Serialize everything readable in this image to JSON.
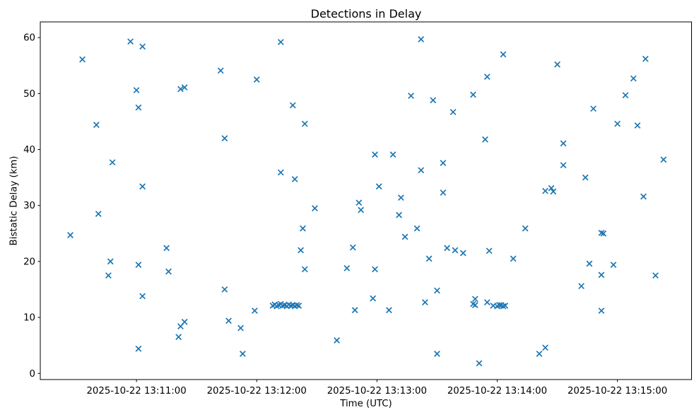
{
  "chart_data": {
    "type": "scatter",
    "title": "Detections in Delay",
    "xlabel": "Time (UTC)",
    "ylabel": "Bistatic Delay (km)",
    "marker": "x",
    "marker_color": "#1f77b4",
    "grid": false,
    "legend": "none",
    "ylim": [
      -1.1,
      62.8
    ],
    "xlim": [
      "13:10:12",
      "13:15:37"
    ],
    "y_ticks": [
      0,
      10,
      20,
      30,
      40,
      50,
      60
    ],
    "x_ticks": [
      {
        "label": "2025-10-22 13:11:00",
        "time": "13:11:00"
      },
      {
        "label": "2025-10-22 13:12:00",
        "time": "13:12:00"
      },
      {
        "label": "2025-10-22 13:13:00",
        "time": "13:13:00"
      },
      {
        "label": "2025-10-22 13:14:00",
        "time": "13:14:00"
      },
      {
        "label": "2025-10-22 13:15:00",
        "time": "13:15:00"
      }
    ],
    "points": [
      {
        "t": "13:10:57",
        "v": 59.3
      },
      {
        "t": "13:11:03",
        "v": 58.4
      },
      {
        "t": "13:10:33",
        "v": 56.1
      },
      {
        "t": "13:11:00",
        "v": 50.6
      },
      {
        "t": "13:11:22",
        "v": 50.8
      },
      {
        "t": "13:11:24",
        "v": 51.1
      },
      {
        "t": "13:11:01",
        "v": 47.5
      },
      {
        "t": "13:10:40",
        "v": 44.4
      },
      {
        "t": "13:10:48",
        "v": 37.7
      },
      {
        "t": "13:11:03",
        "v": 33.4
      },
      {
        "t": "13:10:41",
        "v": 28.5
      },
      {
        "t": "13:10:27",
        "v": 24.7
      },
      {
        "t": "13:11:15",
        "v": 22.4
      },
      {
        "t": "13:10:47",
        "v": 20.0
      },
      {
        "t": "13:11:01",
        "v": 19.4
      },
      {
        "t": "13:11:16",
        "v": 18.2
      },
      {
        "t": "13:10:46",
        "v": 17.5
      },
      {
        "t": "13:11:03",
        "v": 13.8
      },
      {
        "t": "13:11:24",
        "v": 9.2
      },
      {
        "t": "13:11:22",
        "v": 8.4
      },
      {
        "t": "13:11:21",
        "v": 6.5
      },
      {
        "t": "13:11:01",
        "v": 4.4
      },
      {
        "t": "13:12:12",
        "v": 59.2
      },
      {
        "t": "13:11:42",
        "v": 54.1
      },
      {
        "t": "13:12:00",
        "v": 52.5
      },
      {
        "t": "13:12:18",
        "v": 47.9
      },
      {
        "t": "13:12:24",
        "v": 44.6
      },
      {
        "t": "13:11:44",
        "v": 42.0
      },
      {
        "t": "13:12:12",
        "v": 35.9
      },
      {
        "t": "13:12:19",
        "v": 34.7
      },
      {
        "t": "13:12:29",
        "v": 29.5
      },
      {
        "t": "13:12:51",
        "v": 30.5
      },
      {
        "t": "13:12:52",
        "v": 29.2
      },
      {
        "t": "13:12:23",
        "v": 25.9
      },
      {
        "t": "13:12:22",
        "v": 22.0
      },
      {
        "t": "13:12:48",
        "v": 22.5
      },
      {
        "t": "13:12:24",
        "v": 18.6
      },
      {
        "t": "13:12:45",
        "v": 18.8
      },
      {
        "t": "13:11:44",
        "v": 15.0
      },
      {
        "t": "13:11:59",
        "v": 11.2
      },
      {
        "t": "13:11:46",
        "v": 9.4
      },
      {
        "t": "13:11:52",
        "v": 8.1
      },
      {
        "t": "13:12:40",
        "v": 5.9
      },
      {
        "t": "13:11:53",
        "v": 3.5
      },
      {
        "t": "13:12:49",
        "v": 11.3
      },
      {
        "t": "13:12:08",
        "v": 12.1
      },
      {
        "t": "13:12:09",
        "v": 12.3
      },
      {
        "t": "13:12:10",
        "v": 12.0
      },
      {
        "t": "13:12:11",
        "v": 12.2
      },
      {
        "t": "13:12:12",
        "v": 12.4
      },
      {
        "t": "13:12:13",
        "v": 12.1
      },
      {
        "t": "13:12:14",
        "v": 12.2
      },
      {
        "t": "13:12:15",
        "v": 12.0
      },
      {
        "t": "13:12:16",
        "v": 12.3
      },
      {
        "t": "13:12:17",
        "v": 12.1
      },
      {
        "t": "13:12:18",
        "v": 12.2
      },
      {
        "t": "13:12:19",
        "v": 12.0
      },
      {
        "t": "13:12:20",
        "v": 12.2
      },
      {
        "t": "13:12:21",
        "v": 12.1
      },
      {
        "t": "13:13:22",
        "v": 59.7
      },
      {
        "t": "13:14:03",
        "v": 57.0
      },
      {
        "t": "13:13:55",
        "v": 53.0
      },
      {
        "t": "13:13:17",
        "v": 49.6
      },
      {
        "t": "13:13:28",
        "v": 48.8
      },
      {
        "t": "13:13:48",
        "v": 49.8
      },
      {
        "t": "13:13:38",
        "v": 46.7
      },
      {
        "t": "13:13:54",
        "v": 41.8
      },
      {
        "t": "13:12:59",
        "v": 39.1
      },
      {
        "t": "13:13:08",
        "v": 39.1
      },
      {
        "t": "13:13:33",
        "v": 37.6
      },
      {
        "t": "13:13:22",
        "v": 36.3
      },
      {
        "t": "13:13:01",
        "v": 33.4
      },
      {
        "t": "13:13:33",
        "v": 32.3
      },
      {
        "t": "13:13:12",
        "v": 31.4
      },
      {
        "t": "13:13:11",
        "v": 28.3
      },
      {
        "t": "13:13:20",
        "v": 25.9
      },
      {
        "t": "13:13:14",
        "v": 24.4
      },
      {
        "t": "13:13:35",
        "v": 22.4
      },
      {
        "t": "13:13:39",
        "v": 22.0
      },
      {
        "t": "13:13:43",
        "v": 21.5
      },
      {
        "t": "13:13:56",
        "v": 21.9
      },
      {
        "t": "13:13:26",
        "v": 20.5
      },
      {
        "t": "13:14:08",
        "v": 20.5
      },
      {
        "t": "13:12:59",
        "v": 18.6
      },
      {
        "t": "13:13:30",
        "v": 14.8
      },
      {
        "t": "13:12:58",
        "v": 13.4
      },
      {
        "t": "13:13:24",
        "v": 12.7
      },
      {
        "t": "13:13:06",
        "v": 11.3
      },
      {
        "t": "13:14:14",
        "v": 25.9
      },
      {
        "t": "13:13:30",
        "v": 3.5
      },
      {
        "t": "13:13:51",
        "v": 1.8
      },
      {
        "t": "13:13:49",
        "v": 13.3
      },
      {
        "t": "13:13:48",
        "v": 12.4
      },
      {
        "t": "13:13:49",
        "v": 12.2
      },
      {
        "t": "13:13:55",
        "v": 12.7
      },
      {
        "t": "13:13:58",
        "v": 12.1
      },
      {
        "t": "13:14:00",
        "v": 12.0
      },
      {
        "t": "13:14:01",
        "v": 12.2
      },
      {
        "t": "13:14:02",
        "v": 12.2
      },
      {
        "t": "13:14:03",
        "v": 12.0
      },
      {
        "t": "13:14:04",
        "v": 12.1
      },
      {
        "t": "13:15:14",
        "v": 56.2
      },
      {
        "t": "13:14:30",
        "v": 55.2
      },
      {
        "t": "13:15:08",
        "v": 52.7
      },
      {
        "t": "13:15:04",
        "v": 49.7
      },
      {
        "t": "13:14:48",
        "v": 47.3
      },
      {
        "t": "13:15:00",
        "v": 44.6
      },
      {
        "t": "13:15:10",
        "v": 44.3
      },
      {
        "t": "13:14:33",
        "v": 41.1
      },
      {
        "t": "13:14:33",
        "v": 37.2
      },
      {
        "t": "13:14:44",
        "v": 35.0
      },
      {
        "t": "13:14:24",
        "v": 32.6
      },
      {
        "t": "13:14:27",
        "v": 33.1
      },
      {
        "t": "13:14:28",
        "v": 32.5
      },
      {
        "t": "13:15:13",
        "v": 31.6
      },
      {
        "t": "13:15:23",
        "v": 38.2
      },
      {
        "t": "13:14:52",
        "v": 25.1
      },
      {
        "t": "13:14:53",
        "v": 25.0
      },
      {
        "t": "13:14:46",
        "v": 19.6
      },
      {
        "t": "13:14:58",
        "v": 19.4
      },
      {
        "t": "13:14:52",
        "v": 17.6
      },
      {
        "t": "13:15:19",
        "v": 17.5
      },
      {
        "t": "13:14:42",
        "v": 15.6
      },
      {
        "t": "13:14:52",
        "v": 11.2
      },
      {
        "t": "13:14:24",
        "v": 4.6
      },
      {
        "t": "13:14:21",
        "v": 3.5
      }
    ]
  }
}
